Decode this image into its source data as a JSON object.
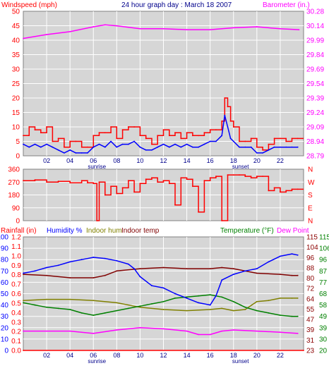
{
  "header": {
    "left_label": "Windspeed (mph)",
    "title": "24 hour graph day : March 18 2007",
    "right_label": "Barometer (in.)"
  },
  "colors": {
    "panel_bg": "#d6d6d6",
    "grid": "#ffffff",
    "red": "#ff0000",
    "magenta": "#ff00ff",
    "blue": "#0000ff",
    "olive": "#808000",
    "maroon": "#800000",
    "green": "#008000",
    "dark_red": "#8b0000"
  },
  "x_axis": {
    "ticks": [
      "02",
      "04",
      "06",
      "08",
      "10",
      "12",
      "14",
      "16",
      "18",
      "20",
      "22"
    ],
    "sunrise_label": "sunrise",
    "sunset_label": "sunset",
    "sunrise_hour": 6.3,
    "sunset_hour": 18.6
  },
  "chart_data": [
    {
      "type": "line",
      "title": "24 hour graph day : March 18 2007",
      "x_range": [
        0,
        24
      ],
      "left_axis": {
        "label": "Windspeed (mph)",
        "range": [
          0,
          50
        ],
        "ticks": [
          "0",
          "5",
          "10",
          "15",
          "20",
          "25",
          "30",
          "35",
          "40",
          "45",
          "50"
        ]
      },
      "right_axis": {
        "label": "Barometer (in.)",
        "range": [
          28.79,
          30.28
        ],
        "ticks": [
          "28.79",
          "28.94",
          "29.09",
          "29.24",
          "29.39",
          "29.54",
          "29.69",
          "29.84",
          "29.99",
          "30.14",
          "30.28"
        ]
      },
      "grid": true,
      "series": [
        {
          "name": "Windspeed (mph)",
          "axis": "left",
          "color": "#ff0000",
          "x": [
            0,
            0.5,
            1,
            1.5,
            2,
            2.5,
            3,
            3.5,
            4,
            4.5,
            5,
            5.5,
            6,
            6.5,
            7,
            7.5,
            8,
            8.5,
            9,
            9.5,
            10,
            10.5,
            11,
            11.5,
            12,
            12.5,
            13,
            13.5,
            14,
            14.5,
            15,
            15.5,
            16,
            16.5,
            17,
            17.25,
            17.5,
            17.75,
            18,
            18.5,
            19,
            19.5,
            20,
            20.5,
            21,
            21.5,
            22,
            22.5,
            23,
            23.5
          ],
          "values": [
            7,
            10,
            9,
            8,
            10,
            5,
            6,
            3,
            5,
            5,
            3,
            3,
            7,
            8,
            8,
            10,
            6,
            9,
            10,
            10,
            7,
            6,
            4,
            7,
            9,
            7,
            8,
            6,
            8,
            7,
            7,
            8,
            9,
            9,
            12,
            20,
            17,
            12,
            10,
            5,
            5,
            6,
            3,
            2,
            4,
            6,
            6,
            5,
            6,
            6
          ]
        },
        {
          "name": "Gust",
          "axis": "left",
          "color": "#0000ff",
          "x": [
            0,
            0.5,
            1,
            1.5,
            2,
            2.5,
            3,
            3.5,
            4,
            4.5,
            5,
            5.5,
            6,
            6.5,
            7,
            7.5,
            8,
            8.5,
            9,
            9.5,
            10,
            10.5,
            11,
            11.5,
            12,
            12.5,
            13,
            13.5,
            14,
            14.5,
            15,
            15.5,
            16,
            16.5,
            17,
            17.25,
            17.5,
            17.75,
            18,
            18.5,
            19,
            19.5,
            20,
            20.5,
            21,
            21.5,
            22,
            22.5,
            23,
            23.5
          ],
          "values": [
            4,
            3,
            4,
            3,
            4,
            3,
            2,
            1,
            2,
            1,
            1,
            1,
            3,
            4,
            3,
            5,
            3,
            4,
            4,
            5,
            3,
            2,
            2,
            3,
            4,
            3,
            4,
            3,
            4,
            3,
            3,
            4,
            5,
            5,
            7,
            14,
            10,
            6,
            5,
            3,
            3,
            3,
            1,
            1,
            2,
            3,
            3,
            3,
            3,
            3
          ]
        },
        {
          "name": "Barometer (in.)",
          "axis": "right",
          "color": "#ff00ff",
          "x": [
            0,
            2,
            4,
            6,
            7,
            8,
            10,
            12,
            14,
            16,
            18,
            20,
            22,
            23.6
          ],
          "values": [
            30.0,
            30.04,
            30.07,
            30.12,
            30.14,
            30.13,
            30.1,
            30.1,
            30.09,
            30.09,
            30.11,
            30.12,
            30.1,
            30.09
          ]
        }
      ]
    },
    {
      "type": "line",
      "x_range": [
        0,
        24
      ],
      "left_axis": {
        "label": "",
        "range": [
          0,
          360
        ],
        "ticks": [
          "0",
          "90",
          "180",
          "270",
          "360"
        ]
      },
      "right_axis": {
        "label": "",
        "ticks": [
          "N",
          "W",
          "S",
          "E",
          "N"
        ]
      },
      "grid": true,
      "series": [
        {
          "name": "Wind direction",
          "color": "#ff0000",
          "x": [
            0,
            1,
            2,
            3,
            4,
            5,
            5.5,
            6,
            6.3,
            6.5,
            7,
            7.5,
            8,
            8.5,
            9,
            9.5,
            10,
            10.5,
            11,
            11.5,
            12,
            12.5,
            13,
            13.5,
            14,
            14.5,
            15,
            15.5,
            16,
            16.5,
            17,
            17.5,
            18,
            18.5,
            19,
            19.5,
            20,
            20.5,
            21,
            21.5,
            22,
            22.5,
            23,
            23.5
          ],
          "values": [
            280,
            285,
            270,
            275,
            265,
            280,
            265,
            260,
            0,
            270,
            180,
            240,
            190,
            230,
            280,
            200,
            260,
            290,
            300,
            270,
            280,
            260,
            110,
            300,
            290,
            240,
            60,
            280,
            300,
            310,
            0,
            320,
            320,
            320,
            310,
            300,
            310,
            310,
            210,
            230,
            200,
            210,
            220,
            220
          ]
        }
      ]
    },
    {
      "type": "line",
      "x_range": [
        0,
        24
      ],
      "left_axis_1": {
        "label": "Rainfall (in)",
        "range": [
          0,
          1.2
        ],
        "ticks": [
          "0.0",
          "0.1",
          "0.2",
          "0.3",
          "0.4",
          "0.5",
          "0.6",
          "0.7",
          "0.8",
          "0.9",
          "1.0",
          "1.1",
          "1.2"
        ]
      },
      "left_axis_2": {
        "label": "Humidity %",
        "range": [
          0,
          100
        ],
        "ticks": [
          "0",
          "10",
          "20",
          "30",
          "40",
          "50",
          "60",
          "70",
          "80",
          "90",
          "100"
        ]
      },
      "right_axis_1": {
        "label": "Temperature (°F)",
        "range": [
          23,
          115
        ],
        "ticks": [
          "23",
          "31",
          "39",
          "47",
          "55",
          "64",
          "72",
          "80",
          "88",
          "96",
          "104",
          "115"
        ]
      },
      "right_axis_2": {
        "label": "Dew Point",
        "range": [
          20,
          120
        ],
        "ticks": [
          "20",
          "30",
          "39",
          "49",
          "58",
          "68",
          "77",
          "87",
          "96",
          "106",
          "115"
        ]
      },
      "legend_labels": [
        "Rainfall (in)",
        "Humidity %",
        "Indoor hum",
        "Indoor temp",
        "Temperature (°F)",
        "Dew Point"
      ],
      "grid": true,
      "series": [
        {
          "name": "Humidity %",
          "color": "#0000ff",
          "x": [
            0,
            1,
            2,
            3,
            4,
            5,
            6,
            7,
            8,
            9,
            9.5,
            10,
            11,
            12,
            13,
            14,
            15,
            16,
            16.5,
            17,
            18,
            19,
            20,
            21,
            22,
            23,
            23.5
          ],
          "values": [
            68,
            70,
            73,
            75,
            78,
            80,
            82,
            81,
            79,
            76,
            72,
            65,
            57,
            55,
            50,
            46,
            42,
            40,
            48,
            62,
            67,
            70,
            72,
            78,
            83,
            85,
            84
          ]
        },
        {
          "name": "Indoor hum",
          "color": "#808000",
          "x": [
            0,
            2,
            4,
            6,
            8,
            10,
            12,
            14,
            16,
            17,
            18,
            19,
            20,
            21,
            22,
            23,
            23.5
          ],
          "values": [
            44,
            45,
            45,
            44,
            42,
            38,
            36,
            35,
            36,
            37,
            35,
            36,
            43,
            44,
            46,
            46,
            46
          ]
        },
        {
          "name": "Indoor temp",
          "color": "#800000",
          "x": [
            0,
            2,
            4,
            6,
            7,
            8,
            10,
            12,
            14,
            16,
            17,
            18,
            20,
            22,
            23,
            23.5
          ],
          "values": [
            67,
            66,
            64,
            64,
            66,
            70,
            72,
            73,
            72,
            72,
            73,
            72,
            68,
            67,
            66,
            66
          ]
        },
        {
          "name": "Temperature (°F)",
          "color": "#008000",
          "x": [
            0,
            1,
            2,
            3,
            4,
            5,
            6,
            7,
            8,
            9,
            10,
            11,
            12,
            13,
            14,
            15,
            16,
            17,
            18,
            19,
            20,
            21,
            22,
            23,
            23.5
          ],
          "values": [
            42,
            40,
            38,
            37,
            36,
            33,
            31,
            33,
            35,
            37,
            39,
            41,
            43,
            46,
            47,
            48,
            49,
            47,
            43,
            38,
            35,
            33,
            31,
            30,
            30
          ]
        },
        {
          "name": "Dew Point",
          "color": "#ff00ff",
          "x": [
            0,
            2,
            4,
            6,
            8,
            10,
            12,
            14,
            15,
            16,
            17,
            18,
            20,
            22,
            23.5
          ],
          "values": [
            17,
            17,
            17,
            15,
            18,
            20,
            19,
            17,
            14,
            14,
            17,
            18,
            17,
            16,
            15
          ]
        },
        {
          "name": "Rainfall (in)",
          "color": "#ff0000",
          "x": [
            0,
            24
          ],
          "values": [
            0,
            0
          ]
        }
      ]
    }
  ]
}
